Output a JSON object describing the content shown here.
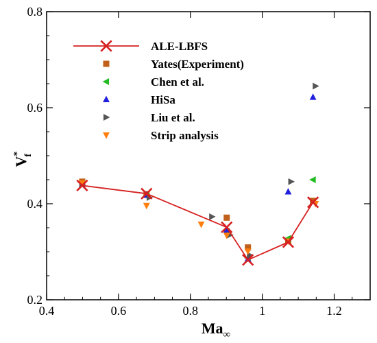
{
  "chart_data": {
    "type": "scatter",
    "xlabel": {
      "main": "Ma",
      "sub": "∞"
    },
    "ylabel": {
      "main": "V",
      "sup": "*",
      "sub": "f"
    },
    "xlim": [
      0.4,
      1.3
    ],
    "ylim": [
      0.2,
      0.8
    ],
    "xticks": [
      "0.4",
      "0.6",
      "0.8",
      "1",
      "1.2"
    ],
    "yticks": [
      "0.2",
      "0.4",
      "0.6",
      "0.8"
    ],
    "legend_position": "top-left",
    "series": [
      {
        "name": "ALE-LBFS",
        "marker": "x-line",
        "color": "#d62020",
        "x": [
          0.499,
          0.678,
          0.901,
          0.96,
          1.072,
          1.141
        ],
        "y": [
          0.438,
          0.421,
          0.351,
          0.283,
          0.32,
          0.403
        ]
      },
      {
        "name": "Yates(Experiment)",
        "marker": "square",
        "color": "#c0601a",
        "x": [
          0.499,
          0.678,
          0.901,
          0.96,
          1.072,
          1.141
        ],
        "y": [
          0.446,
          0.42,
          0.371,
          0.309,
          0.323,
          0.406
        ]
      },
      {
        "name": "Chen et al.",
        "marker": "triangle-left",
        "color": "#22bb22",
        "x": [
          0.499,
          0.678,
          0.901,
          0.96,
          1.072,
          1.141
        ],
        "y": [
          0.443,
          0.417,
          0.343,
          0.287,
          0.328,
          0.45
        ]
      },
      {
        "name": "HiSa",
        "marker": "triangle-up",
        "color": "#2020dd",
        "x": [
          0.499,
          0.678,
          0.901,
          0.96,
          1.072,
          1.141
        ],
        "y": [
          0.441,
          0.418,
          0.345,
          0.285,
          0.425,
          0.622
        ]
      },
      {
        "name": "Liu et al.",
        "marker": "triangle-right",
        "color": "#555555",
        "x": [
          0.499,
          0.686,
          0.86,
          0.91,
          0.965,
          1.08,
          1.148
        ],
        "y": [
          0.44,
          0.413,
          0.373,
          0.335,
          0.293,
          0.446,
          0.645
        ]
      },
      {
        "name": "Strip analysis",
        "marker": "triangle-down",
        "color": "#ff7f0e",
        "x": [
          0.499,
          0.678,
          0.83,
          0.901,
          0.96,
          1.072,
          1.148
        ],
        "y": [
          0.443,
          0.396,
          0.357,
          0.334,
          0.301,
          0.322,
          0.4
        ]
      }
    ]
  }
}
